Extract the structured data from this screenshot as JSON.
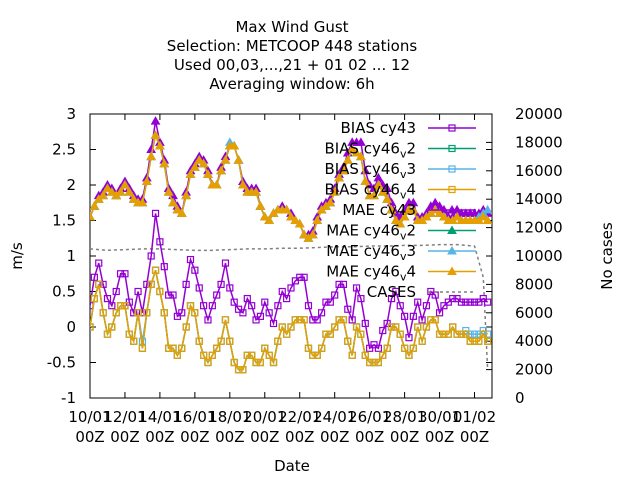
{
  "chart_data": {
    "type": "line",
    "title": [
      "Max Wind Gust",
      "Selection: METCOOP    448 stations",
      "Used  00,03,...,21  + 01 02 ... 12",
      "Averaging window:  6h"
    ],
    "xlabel": "Date",
    "ylabel": "m/s",
    "y2label": "No cases",
    "ylim": [
      -1,
      3
    ],
    "y2lim": [
      0,
      20000
    ],
    "yticks": [
      "-1",
      "-0.5",
      "0",
      "0.5",
      "1",
      "1.5",
      "2",
      "2.5",
      "3"
    ],
    "y2ticks": [
      "0",
      "2000",
      "4000",
      "6000",
      "8000",
      "10000",
      "12000",
      "14000",
      "16000",
      "18000",
      "20000"
    ],
    "xticks": [
      {
        "top": "10/01",
        "bottom": "00Z"
      },
      {
        "top": "12/01",
        "bottom": "00Z"
      },
      {
        "top": "14/01",
        "bottom": "00Z"
      },
      {
        "top": "16/01",
        "bottom": "00Z"
      },
      {
        "top": "18/01",
        "bottom": "00Z"
      },
      {
        "top": "20/01",
        "bottom": "00Z"
      },
      {
        "top": "22/01",
        "bottom": "00Z"
      },
      {
        "top": "24/01",
        "bottom": "00Z"
      },
      {
        "top": "26/01",
        "bottom": "00Z"
      },
      {
        "top": "28/01",
        "bottom": "00Z"
      },
      {
        "top": "30/01",
        "bottom": "00Z"
      },
      {
        "top": "01/02",
        "bottom": "00Z"
      }
    ],
    "legend_position": "top-right",
    "legend": [
      {
        "label": "BIAS cy43"
      },
      {
        "label": "BIAS cy46",
        "sub": "v",
        "tail": "2"
      },
      {
        "label": "BIAS cy46",
        "sub": "v",
        "tail": "3"
      },
      {
        "label": "BIAS cy46",
        "sub": "v",
        "tail": "4"
      },
      {
        "label": "MAE cy43"
      },
      {
        "label": "MAE cy46",
        "sub": "v",
        "tail": "2"
      },
      {
        "label": "MAE cy46",
        "sub": "v",
        "tail": "3"
      },
      {
        "label": "MAE cy46",
        "sub": "v",
        "tail": "4"
      },
      {
        "label": "CASES"
      }
    ],
    "colors": {
      "cy43": "#9400d3",
      "cy46v2": "#009e73",
      "cy46v3": "#56b4e9",
      "cy46v4": "#e69f00",
      "cases": "#808080"
    },
    "x_days": [
      0,
      0.25,
      0.5,
      0.75,
      1,
      1.25,
      1.5,
      1.75,
      2,
      2.25,
      2.5,
      2.75,
      3,
      3.25,
      3.5,
      3.75,
      4,
      4.25,
      4.5,
      4.75,
      5,
      5.25,
      5.5,
      5.75,
      6,
      6.25,
      6.5,
      6.75,
      7,
      7.25,
      7.5,
      7.75,
      8,
      8.25,
      8.5,
      8.75,
      9,
      9.25,
      9.5,
      9.75,
      10,
      10.25,
      10.5,
      10.75,
      11,
      11.25,
      11.5,
      11.75,
      12,
      12.25,
      12.5,
      12.75,
      13,
      13.25,
      13.5,
      13.75,
      14,
      14.25,
      14.5,
      14.75,
      15,
      15.25,
      15.5,
      15.75,
      16,
      16.25,
      16.5,
      16.75,
      17,
      17.25,
      17.5,
      17.75,
      18,
      18.25,
      18.5,
      18.75,
      19,
      19.25,
      19.5,
      19.75,
      20,
      20.25,
      20.5,
      20.75,
      21,
      21.25,
      21.5,
      21.75,
      22,
      22.25,
      22.5,
      22.75
    ],
    "series": [
      {
        "key": "bias_cy43",
        "name": "BIAS cy43",
        "color": "#9400d3",
        "marker": "square",
        "values": [
          0.3,
          0.7,
          0.9,
          0.6,
          0.4,
          0.3,
          0.5,
          0.75,
          0.75,
          0.35,
          0.2,
          0.5,
          0.2,
          0.6,
          1.0,
          1.6,
          1.2,
          0.85,
          0.45,
          0.45,
          0.15,
          0.2,
          0.6,
          0.95,
          0.8,
          0.55,
          0.3,
          0.1,
          0.3,
          0.45,
          0.6,
          0.9,
          0.55,
          0.35,
          0.25,
          0.2,
          0.4,
          0.3,
          0.1,
          0.15,
          0.35,
          0.2,
          0.05,
          0.3,
          0.5,
          0.4,
          0.55,
          0.65,
          0.7,
          0.7,
          0.3,
          0.1,
          0.1,
          0.2,
          0.35,
          0.35,
          0.45,
          0.6,
          0.6,
          0.25,
          0.1,
          0.55,
          0.4,
          0.05,
          -0.3,
          -0.25,
          -0.3,
          -0.05,
          0.05,
          0.4,
          0.5,
          0.3,
          0.15,
          -0.15,
          0.15,
          0.35,
          0.1,
          0.3,
          0.5,
          0.45,
          0.2,
          0.3,
          0.35,
          0.4,
          0.4,
          0.35,
          0.35,
          0.35,
          0.35,
          0.35,
          0.4,
          0.35
        ]
      },
      {
        "key": "bias_cy46v2",
        "name": "BIAS cy46_v_2",
        "color": "#009e73",
        "marker": "square",
        "values": [
          0.0,
          0.4,
          0.6,
          0.2,
          -0.1,
          0.0,
          0.2,
          0.3,
          0.3,
          -0.1,
          -0.2,
          0.2,
          -0.3,
          0.2,
          0.6,
          0.8,
          0.5,
          0.2,
          -0.3,
          -0.3,
          -0.4,
          -0.3,
          0.0,
          0.3,
          0.2,
          -0.2,
          -0.4,
          -0.5,
          -0.4,
          -0.3,
          -0.2,
          0.1,
          -0.2,
          -0.5,
          -0.6,
          -0.6,
          -0.4,
          -0.4,
          -0.5,
          -0.5,
          -0.3,
          -0.4,
          -0.5,
          -0.2,
          0.0,
          -0.1,
          0.0,
          0.1,
          0.1,
          0.1,
          -0.3,
          -0.4,
          -0.4,
          -0.3,
          -0.1,
          -0.1,
          0.0,
          0.1,
          0.1,
          -0.2,
          -0.4,
          0.0,
          -0.1,
          -0.4,
          -0.5,
          -0.5,
          -0.5,
          -0.4,
          -0.3,
          0.0,
          0.0,
          -0.1,
          -0.3,
          -0.4,
          -0.3,
          0.0,
          -0.2,
          0.0,
          0.1,
          0.1,
          -0.1,
          -0.1,
          -0.1,
          0.0,
          -0.1,
          -0.1,
          -0.1,
          -0.2,
          -0.2,
          -0.2,
          -0.1,
          -0.2
        ]
      },
      {
        "key": "bias_cy46v3",
        "name": "BIAS cy46_v_3",
        "color": "#56b4e9",
        "marker": "square",
        "values": [
          0.0,
          0.4,
          0.6,
          0.2,
          -0.1,
          0.0,
          0.2,
          0.3,
          0.3,
          -0.1,
          -0.2,
          0.2,
          -0.2,
          0.2,
          0.6,
          0.8,
          0.5,
          0.2,
          -0.3,
          -0.3,
          -0.4,
          -0.3,
          0.0,
          0.3,
          0.2,
          -0.2,
          -0.4,
          -0.5,
          -0.4,
          -0.3,
          -0.2,
          0.1,
          -0.2,
          -0.5,
          -0.6,
          -0.6,
          -0.4,
          -0.4,
          -0.5,
          -0.5,
          -0.3,
          -0.4,
          -0.5,
          -0.2,
          0.0,
          -0.1,
          0.0,
          0.1,
          0.1,
          0.1,
          -0.3,
          -0.4,
          -0.4,
          -0.3,
          -0.1,
          -0.1,
          0.0,
          0.1,
          0.1,
          -0.2,
          -0.4,
          0.0,
          -0.1,
          -0.4,
          -0.5,
          -0.5,
          -0.5,
          -0.4,
          -0.3,
          0.0,
          0.0,
          -0.1,
          -0.3,
          -0.4,
          -0.3,
          0.0,
          -0.2,
          0.0,
          0.1,
          0.1,
          -0.1,
          -0.1,
          -0.1,
          0.0,
          -0.1,
          -0.1,
          -0.05,
          -0.1,
          -0.1,
          -0.1,
          -0.05,
          -0.1
        ]
      },
      {
        "key": "bias_cy46v4",
        "name": "BIAS cy46_v_4",
        "color": "#e69f00",
        "marker": "square",
        "values": [
          0.0,
          0.4,
          0.6,
          0.2,
          -0.1,
          0.0,
          0.2,
          0.3,
          0.3,
          -0.1,
          -0.2,
          0.2,
          -0.3,
          0.2,
          0.6,
          0.8,
          0.5,
          0.2,
          -0.3,
          -0.3,
          -0.4,
          -0.3,
          0.0,
          0.3,
          0.2,
          -0.2,
          -0.4,
          -0.5,
          -0.4,
          -0.3,
          -0.2,
          0.1,
          -0.2,
          -0.5,
          -0.6,
          -0.6,
          -0.4,
          -0.4,
          -0.5,
          -0.5,
          -0.3,
          -0.4,
          -0.5,
          -0.2,
          0.0,
          -0.1,
          0.0,
          0.1,
          0.1,
          0.1,
          -0.3,
          -0.4,
          -0.4,
          -0.3,
          -0.1,
          -0.1,
          0.0,
          0.1,
          0.1,
          -0.2,
          -0.4,
          0.0,
          -0.1,
          -0.4,
          -0.5,
          -0.5,
          -0.5,
          -0.4,
          -0.3,
          0.0,
          0.0,
          -0.1,
          -0.3,
          -0.4,
          -0.3,
          0.0,
          -0.2,
          0.0,
          0.1,
          0.1,
          -0.1,
          -0.1,
          -0.1,
          0.0,
          -0.1,
          -0.1,
          -0.1,
          -0.2,
          -0.2,
          -0.2,
          -0.1,
          -0.2
        ]
      },
      {
        "key": "mae_cy43",
        "name": "MAE cy43",
        "color": "#9400d3",
        "marker": "triangle",
        "values": [
          1.55,
          1.7,
          1.85,
          1.9,
          2.0,
          1.95,
          1.85,
          1.95,
          2.05,
          1.95,
          1.85,
          1.8,
          1.8,
          2.1,
          2.5,
          2.9,
          2.6,
          2.35,
          1.95,
          1.85,
          1.7,
          1.6,
          1.9,
          2.2,
          2.3,
          2.4,
          2.35,
          2.2,
          2.0,
          2.0,
          2.25,
          2.4,
          2.55,
          2.55,
          2.35,
          2.05,
          1.95,
          1.95,
          1.95,
          1.7,
          1.55,
          1.5,
          1.6,
          1.65,
          1.7,
          1.65,
          1.6,
          1.5,
          1.45,
          1.3,
          1.3,
          1.35,
          1.55,
          1.7,
          1.75,
          1.8,
          1.95,
          2.15,
          2.25,
          2.45,
          2.6,
          2.6,
          2.6,
          2.2,
          2.0,
          1.95,
          2.1,
          2.0,
          1.95,
          1.75,
          1.6,
          1.55,
          1.65,
          1.75,
          1.75,
          1.55,
          1.55,
          1.6,
          1.7,
          1.75,
          1.7,
          1.65,
          1.55,
          1.55,
          1.65,
          1.6,
          1.6,
          1.6,
          1.6,
          1.6,
          1.65,
          1.6
        ]
      },
      {
        "key": "mae_cy46v2",
        "name": "MAE cy46_v_2",
        "color": "#009e73",
        "marker": "triangle",
        "values": [
          1.55,
          1.7,
          1.8,
          1.85,
          1.95,
          1.9,
          1.85,
          1.9,
          2.0,
          1.9,
          1.8,
          1.75,
          1.75,
          2.05,
          2.4,
          2.7,
          2.55,
          2.3,
          1.9,
          1.75,
          1.65,
          1.6,
          1.85,
          2.15,
          2.25,
          2.35,
          2.3,
          2.15,
          2.0,
          2.0,
          2.2,
          2.35,
          2.55,
          2.55,
          2.35,
          2.0,
          1.9,
          1.9,
          1.9,
          1.7,
          1.55,
          1.5,
          1.6,
          1.65,
          1.65,
          1.65,
          1.55,
          1.5,
          1.45,
          1.3,
          1.25,
          1.3,
          1.5,
          1.65,
          1.7,
          1.75,
          1.9,
          2.1,
          2.2,
          2.35,
          2.5,
          2.45,
          2.4,
          2.05,
          1.85,
          1.85,
          2.0,
          1.9,
          1.8,
          1.65,
          1.5,
          1.45,
          1.55,
          1.65,
          1.65,
          1.5,
          1.5,
          1.55,
          1.6,
          1.65,
          1.6,
          1.55,
          1.5,
          1.5,
          1.55,
          1.5,
          1.5,
          1.5,
          1.5,
          1.5,
          1.55,
          1.5
        ]
      },
      {
        "key": "mae_cy46v3",
        "name": "MAE cy46_v_3",
        "color": "#56b4e9",
        "marker": "triangle",
        "values": [
          1.55,
          1.7,
          1.8,
          1.85,
          1.95,
          1.9,
          1.85,
          1.9,
          2.0,
          1.9,
          1.8,
          1.75,
          1.75,
          2.05,
          2.4,
          2.7,
          2.55,
          2.3,
          1.9,
          1.75,
          1.65,
          1.6,
          1.85,
          2.15,
          2.25,
          2.35,
          2.3,
          2.15,
          2.0,
          2.0,
          2.2,
          2.35,
          2.6,
          2.55,
          2.35,
          2.0,
          1.9,
          1.9,
          1.9,
          1.7,
          1.55,
          1.5,
          1.6,
          1.65,
          1.65,
          1.65,
          1.55,
          1.5,
          1.45,
          1.3,
          1.25,
          1.3,
          1.5,
          1.65,
          1.7,
          1.75,
          1.9,
          2.1,
          2.2,
          2.35,
          2.5,
          2.45,
          2.4,
          2.05,
          1.85,
          1.85,
          2.0,
          1.9,
          1.8,
          1.65,
          1.5,
          1.45,
          1.55,
          1.65,
          1.65,
          1.5,
          1.5,
          1.55,
          1.6,
          1.65,
          1.6,
          1.55,
          1.5,
          1.5,
          1.55,
          1.5,
          1.5,
          1.5,
          1.5,
          1.55,
          1.6,
          1.65
        ]
      },
      {
        "key": "mae_cy46v4",
        "name": "MAE cy46_v_4",
        "color": "#e69f00",
        "marker": "triangle",
        "values": [
          1.55,
          1.7,
          1.8,
          1.85,
          1.95,
          1.9,
          1.85,
          1.9,
          2.0,
          1.9,
          1.8,
          1.75,
          1.75,
          2.05,
          2.4,
          2.7,
          2.55,
          2.3,
          1.9,
          1.75,
          1.65,
          1.6,
          1.85,
          2.15,
          2.25,
          2.35,
          2.3,
          2.15,
          2.0,
          2.0,
          2.2,
          2.35,
          2.55,
          2.55,
          2.35,
          2.0,
          1.9,
          1.9,
          1.9,
          1.7,
          1.55,
          1.5,
          1.6,
          1.65,
          1.65,
          1.65,
          1.55,
          1.5,
          1.45,
          1.3,
          1.25,
          1.3,
          1.5,
          1.65,
          1.7,
          1.75,
          1.9,
          2.1,
          2.2,
          2.35,
          2.5,
          2.45,
          2.4,
          2.05,
          1.85,
          1.85,
          2.0,
          1.9,
          1.8,
          1.65,
          1.5,
          1.45,
          1.55,
          1.65,
          1.65,
          1.5,
          1.5,
          1.55,
          1.6,
          1.65,
          1.6,
          1.55,
          1.5,
          1.5,
          1.55,
          1.5,
          1.5,
          1.5,
          1.5,
          1.5,
          1.55,
          1.5
        ]
      }
    ],
    "cases": {
      "name": "CASES",
      "color": "#808080",
      "x": [
        0,
        1,
        2,
        3,
        4,
        5,
        6,
        7,
        8,
        9,
        10,
        11,
        12,
        13,
        14,
        15,
        16,
        17,
        18,
        19,
        20,
        21,
        21.5,
        22,
        22.5,
        22.75
      ],
      "values": [
        10500,
        10400,
        10450,
        10500,
        10500,
        10450,
        10400,
        10400,
        10450,
        10500,
        10500,
        10550,
        10550,
        10600,
        10650,
        10650,
        10700,
        10700,
        10750,
        10750,
        10800,
        10800,
        10750,
        10700,
        8500,
        2000
      ]
    }
  }
}
